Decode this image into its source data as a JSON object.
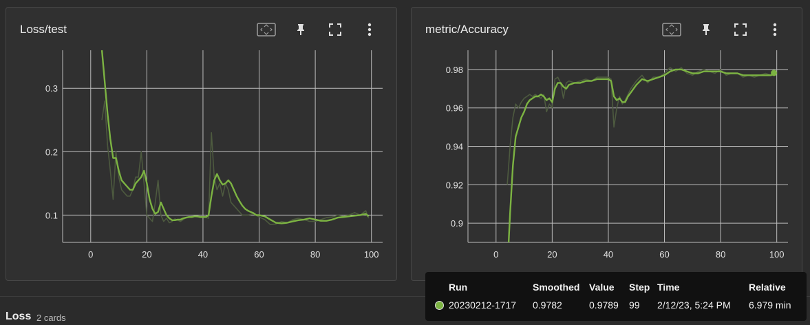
{
  "colors": {
    "line": "#7cb342",
    "raw": "#4d5a3f",
    "grid": "#bdbdbd",
    "tick": "#e0e0e0"
  },
  "cards": [
    {
      "title": "Loss/test",
      "icons": [
        "fit-domain-icon",
        "pin-icon",
        "fullscreen-icon",
        "more-vert-icon"
      ]
    },
    {
      "title": "metric/Accuracy",
      "icons": [
        "fit-domain-icon",
        "pin-icon",
        "fullscreen-icon",
        "more-vert-icon"
      ]
    }
  ],
  "chart_data": [
    {
      "type": "line",
      "title": "Loss/test",
      "xlim": [
        -10,
        104
      ],
      "ylim": [
        0.057,
        0.36
      ],
      "xticks": [
        0,
        20,
        40,
        60,
        80,
        100
      ],
      "yticks": [
        0.1,
        0.2,
        0.3
      ],
      "xtick_labels": [
        "0",
        "20",
        "40",
        "60",
        "80",
        "100"
      ],
      "ytick_labels": [
        "0.1",
        "0.2",
        "0.3"
      ],
      "series": [
        {
          "name": "20230212-1717 smoothed",
          "x": [
            4,
            5,
            6,
            7,
            8,
            9,
            10,
            11,
            12,
            13,
            14,
            15,
            16,
            17,
            18,
            19,
            20,
            21,
            22,
            23,
            24,
            25,
            26,
            27,
            28,
            29,
            30,
            31,
            32,
            33,
            34,
            35,
            36,
            37,
            38,
            39,
            40,
            41,
            42,
            43,
            44,
            45,
            46,
            47,
            48,
            49,
            50,
            51,
            52,
            53,
            54,
            55,
            56,
            57,
            58,
            59,
            60,
            62,
            64,
            66,
            68,
            70,
            72,
            74,
            76,
            78,
            80,
            82,
            84,
            86,
            88,
            90,
            92,
            94,
            96,
            98,
            99
          ],
          "y": [
            0.36,
            0.31,
            0.26,
            0.22,
            0.19,
            0.19,
            0.17,
            0.155,
            0.15,
            0.145,
            0.14,
            0.14,
            0.15,
            0.155,
            0.16,
            0.17,
            0.15,
            0.125,
            0.11,
            0.102,
            0.105,
            0.12,
            0.11,
            0.1,
            0.095,
            0.092,
            0.092,
            0.093,
            0.093,
            0.095,
            0.096,
            0.097,
            0.097,
            0.098,
            0.098,
            0.097,
            0.097,
            0.097,
            0.1,
            0.13,
            0.155,
            0.165,
            0.155,
            0.148,
            0.15,
            0.155,
            0.15,
            0.14,
            0.13,
            0.122,
            0.115,
            0.11,
            0.107,
            0.105,
            0.103,
            0.1,
            0.1,
            0.098,
            0.093,
            0.088,
            0.087,
            0.088,
            0.09,
            0.092,
            0.093,
            0.095,
            0.093,
            0.091,
            0.091,
            0.093,
            0.096,
            0.097,
            0.098,
            0.099,
            0.1,
            0.102,
            0.098
          ]
        },
        {
          "name": "20230212-1717 raw",
          "x": [
            4,
            5,
            6,
            7,
            8,
            9,
            10,
            11,
            12,
            13,
            14,
            15,
            16,
            17,
            18,
            19,
            20,
            21,
            22,
            23,
            24,
            25,
            26,
            27,
            28,
            29,
            30,
            32,
            34,
            36,
            38,
            40,
            42,
            43,
            44,
            45,
            46,
            47,
            48,
            49,
            50,
            52,
            54,
            56,
            58,
            60,
            62,
            64,
            66,
            68,
            70,
            72,
            74,
            76,
            78,
            80,
            82,
            84,
            86,
            88,
            90,
            92,
            94,
            96,
            98,
            99
          ],
          "y": [
            0.25,
            0.28,
            0.21,
            0.17,
            0.125,
            0.2,
            0.16,
            0.14,
            0.135,
            0.13,
            0.13,
            0.14,
            0.16,
            0.16,
            0.2,
            0.15,
            0.1,
            0.095,
            0.09,
            0.12,
            0.155,
            0.1,
            0.09,
            0.095,
            0.088,
            0.09,
            0.094,
            0.09,
            0.096,
            0.098,
            0.097,
            0.098,
            0.095,
            0.23,
            0.16,
            0.14,
            0.15,
            0.13,
            0.15,
            0.14,
            0.12,
            0.11,
            0.1,
            0.1,
            0.102,
            0.097,
            0.093,
            0.085,
            0.086,
            0.09,
            0.088,
            0.093,
            0.095,
            0.093,
            0.09,
            0.09,
            0.093,
            0.096,
            0.097,
            0.1,
            0.098,
            0.1,
            0.104,
            0.1,
            0.107,
            0.095
          ]
        }
      ]
    },
    {
      "type": "line",
      "title": "metric/Accuracy",
      "xlim": [
        -10,
        104
      ],
      "ylim": [
        0.89,
        0.99
      ],
      "xticks": [
        0,
        20,
        40,
        60,
        80,
        100
      ],
      "yticks": [
        0.9,
        0.92,
        0.94,
        0.96,
        0.98
      ],
      "xtick_labels": [
        "0",
        "20",
        "40",
        "60",
        "80",
        "100"
      ],
      "ytick_labels": [
        "0.9",
        "0.92",
        "0.94",
        "0.96",
        "0.98"
      ],
      "series": [
        {
          "name": "20230212-1717 smoothed",
          "x": [
            4.5,
            5,
            6,
            7,
            8,
            9,
            10,
            11,
            12,
            13,
            14,
            15,
            16,
            17,
            18,
            19,
            20,
            21,
            22,
            23,
            24,
            25,
            26,
            28,
            30,
            32,
            34,
            36,
            38,
            40,
            41,
            42,
            43,
            44,
            45,
            46,
            47,
            48,
            50,
            52,
            54,
            56,
            58,
            60,
            62,
            64,
            66,
            68,
            70,
            72,
            74,
            76,
            78,
            80,
            82,
            84,
            86,
            88,
            90,
            92,
            94,
            96,
            98,
            99
          ],
          "y": [
            0.89,
            0.905,
            0.93,
            0.945,
            0.95,
            0.955,
            0.958,
            0.962,
            0.964,
            0.965,
            0.966,
            0.966,
            0.967,
            0.966,
            0.964,
            0.965,
            0.963,
            0.97,
            0.973,
            0.973,
            0.971,
            0.97,
            0.972,
            0.973,
            0.973,
            0.974,
            0.974,
            0.975,
            0.975,
            0.975,
            0.974,
            0.966,
            0.964,
            0.965,
            0.963,
            0.963,
            0.966,
            0.968,
            0.972,
            0.975,
            0.974,
            0.975,
            0.976,
            0.977,
            0.979,
            0.98,
            0.98,
            0.979,
            0.978,
            0.978,
            0.979,
            0.979,
            0.979,
            0.979,
            0.978,
            0.978,
            0.978,
            0.977,
            0.977,
            0.977,
            0.977,
            0.977,
            0.977,
            0.978
          ]
        },
        {
          "name": "20230212-1717 raw",
          "x": [
            4,
            5,
            6,
            7,
            8,
            9,
            10,
            11,
            12,
            13,
            14,
            15,
            16,
            17,
            18,
            19,
            20,
            21,
            22,
            23,
            24,
            25,
            26,
            28,
            30,
            32,
            34,
            36,
            38,
            40,
            41,
            42,
            43,
            44,
            45,
            46,
            48,
            50,
            52,
            54,
            56,
            58,
            60,
            62,
            64,
            66,
            68,
            70,
            72,
            74,
            76,
            78,
            80,
            82,
            84,
            86,
            88,
            90,
            92,
            94,
            96,
            98,
            99
          ],
          "y": [
            0.92,
            0.94,
            0.955,
            0.962,
            0.96,
            0.963,
            0.965,
            0.966,
            0.967,
            0.966,
            0.967,
            0.966,
            0.965,
            0.967,
            0.958,
            0.962,
            0.96,
            0.975,
            0.976,
            0.973,
            0.965,
            0.973,
            0.974,
            0.973,
            0.974,
            0.975,
            0.974,
            0.976,
            0.976,
            0.976,
            0.975,
            0.95,
            0.96,
            0.966,
            0.962,
            0.964,
            0.97,
            0.974,
            0.977,
            0.973,
            0.976,
            0.976,
            0.978,
            0.981,
            0.979,
            0.981,
            0.978,
            0.977,
            0.979,
            0.98,
            0.979,
            0.978,
            0.98,
            0.977,
            0.978,
            0.978,
            0.976,
            0.977,
            0.976,
            0.977,
            0.978,
            0.977,
            0.979
          ]
        }
      ],
      "marker": {
        "x": 99,
        "y": 0.9782
      }
    }
  ],
  "tooltip": {
    "headers": {
      "run": "Run",
      "smoothed": "Smoothed",
      "value": "Value",
      "step": "Step",
      "time": "Time",
      "relative": "Relative"
    },
    "row": {
      "run": "20230212-1717",
      "smoothed": "0.9782",
      "value": "0.9789",
      "step": "99",
      "time": "2/12/23, 5:24 PM",
      "relative": "6.979 min"
    }
  },
  "section": {
    "title": "Loss",
    "count": "2 cards"
  }
}
